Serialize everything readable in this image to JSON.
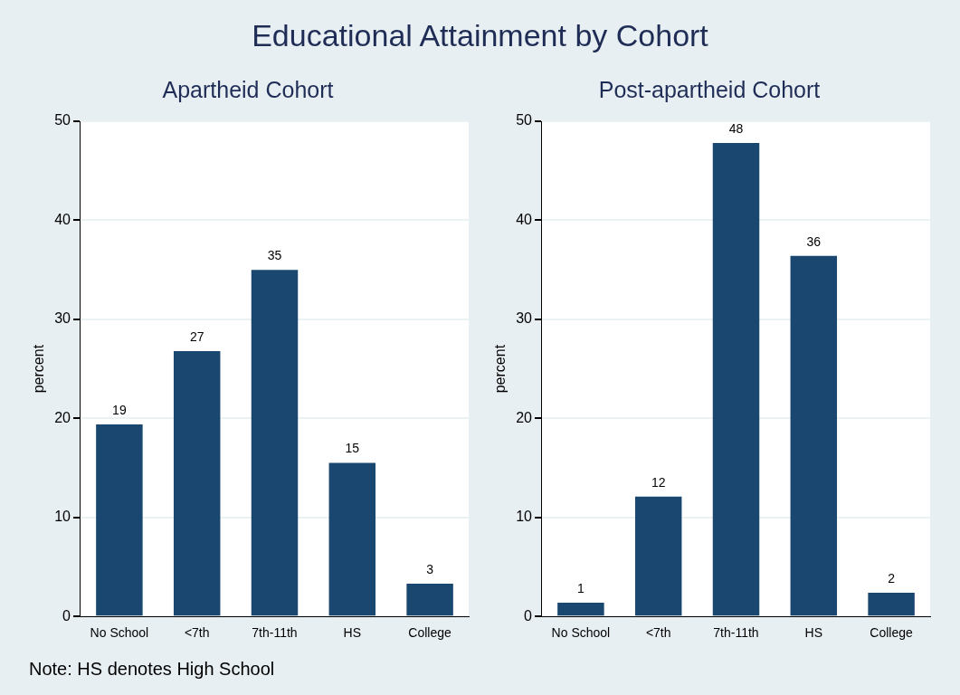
{
  "chart_data": [
    {
      "type": "other",
      "title": "Educational Attainment by Cohort",
      "annotations": [
        "Note: HS denotes High School"
      ]
    },
    {
      "type": "bar",
      "title": "Apartheid Cohort",
      "ylabel": "percent",
      "categories": [
        "No School",
        "<7th",
        "7th-11th",
        "HS",
        "College"
      ],
      "values": [
        19.4,
        26.8,
        35.0,
        15.5,
        3.3
      ],
      "value_labels": [
        "19",
        "27",
        "35",
        "15",
        "3"
      ],
      "color": "#1a476f",
      "ylim": [
        0,
        50
      ],
      "yticks": [
        0,
        10,
        20,
        30,
        40,
        50
      ],
      "grid": "y"
    },
    {
      "type": "bar",
      "title": "Post-apartheid Cohort",
      "ylabel": "percent",
      "categories": [
        "No School",
        "<7th",
        "7th-11th",
        "HS",
        "College"
      ],
      "values": [
        1.4,
        12.1,
        47.8,
        36.4,
        2.4
      ],
      "value_labels": [
        "1",
        "12",
        "48",
        "36",
        "2"
      ],
      "color": "#1a476f",
      "ylim": [
        0,
        50
      ],
      "yticks": [
        0,
        10,
        20,
        30,
        40,
        50
      ],
      "grid": "y"
    }
  ]
}
